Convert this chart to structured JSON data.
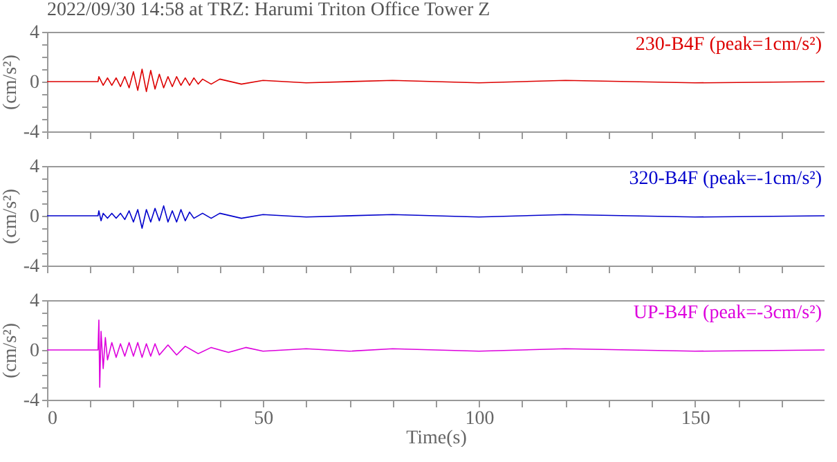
{
  "chart_data": [
    {
      "type": "line",
      "title": "2022/09/30 14:58 at TRZ: Harumi Triton Office Tower Z",
      "ylabel": "(cm/s²)",
      "annotations": [
        "230-B4F (peak=1cm/s²)"
      ],
      "tick_labels": "y",
      "x": [
        0,
        11.8,
        12,
        13,
        14,
        15,
        16,
        17,
        18,
        19,
        20,
        21,
        22,
        23,
        24,
        25,
        26,
        27,
        28,
        29,
        30,
        31,
        32,
        33,
        34,
        35,
        36,
        38,
        40,
        45,
        50,
        60,
        80,
        100,
        120,
        150,
        180
      ],
      "series": [
        {
          "color": "#dd0000",
          "values": [
            0,
            0,
            0.4,
            -0.3,
            0.3,
            -0.3,
            0.3,
            -0.4,
            0.4,
            -0.5,
            0.8,
            -0.7,
            1.0,
            -0.8,
            0.9,
            -0.6,
            0.6,
            -0.5,
            0.4,
            -0.4,
            0.4,
            -0.3,
            0.3,
            -0.3,
            0.3,
            -0.2,
            0.2,
            -0.2,
            0.2,
            -0.2,
            0.1,
            -0.1,
            0.1,
            -0.1,
            0.1,
            -0.1,
            0
          ]
        }
      ],
      "xlim": [
        0,
        180
      ],
      "ylim": [
        -4,
        4
      ],
      "xticks": [
        0,
        {
          "value": 10,
          "label": null
        },
        {
          "value": 20,
          "label": null
        },
        {
          "value": 30,
          "label": null
        },
        {
          "value": 40,
          "label": null
        },
        50,
        {
          "value": 60,
          "label": null
        },
        {
          "value": 70,
          "label": null
        },
        {
          "value": 80,
          "label": null
        },
        {
          "value": 90,
          "label": null
        },
        100,
        {
          "value": 110,
          "label": null
        },
        {
          "value": 120,
          "label": null
        },
        {
          "value": 130,
          "label": null
        },
        {
          "value": 140,
          "label": null
        },
        150,
        {
          "value": 160,
          "label": null
        },
        {
          "value": 170,
          "label": null
        }
      ],
      "yticks": [
        -4,
        {
          "value": -3,
          "label": null
        },
        {
          "value": -2,
          "label": null
        },
        {
          "value": -1,
          "label": null
        },
        0,
        {
          "value": 1,
          "label": null
        },
        {
          "value": 2,
          "label": null
        },
        {
          "value": 3,
          "label": null
        },
        4
      ]
    },
    {
      "type": "line",
      "ylabel": "(cm/s²)",
      "annotations": [
        "320-B4F (peak=-1cm/s²)"
      ],
      "tick_labels": "y",
      "x": [
        0,
        11.8,
        12,
        12.5,
        13,
        14,
        15,
        16,
        17,
        18,
        19,
        20,
        21,
        22,
        23,
        24,
        25,
        26,
        27,
        28,
        29,
        30,
        31,
        32,
        33,
        34,
        36,
        38,
        40,
        45,
        50,
        60,
        80,
        100,
        120,
        150,
        180
      ],
      "series": [
        {
          "color": "#0000cc",
          "values": [
            0,
            0,
            0.4,
            -0.4,
            0.2,
            -0.2,
            0.2,
            -0.2,
            0.2,
            -0.3,
            0.4,
            -0.5,
            0.5,
            -1.0,
            0.5,
            -0.5,
            0.6,
            -0.4,
            0.8,
            -0.5,
            0.4,
            -0.5,
            0.5,
            -0.4,
            0.3,
            -0.2,
            0.2,
            -0.2,
            0.2,
            -0.2,
            0.1,
            -0.1,
            0.1,
            -0.1,
            0.1,
            -0.1,
            0
          ]
        }
      ],
      "xlim": [
        0,
        180
      ],
      "ylim": [
        -4,
        4
      ],
      "xticks": [
        0,
        {
          "value": 10,
          "label": null
        },
        {
          "value": 20,
          "label": null
        },
        {
          "value": 30,
          "label": null
        },
        {
          "value": 40,
          "label": null
        },
        50,
        {
          "value": 60,
          "label": null
        },
        {
          "value": 70,
          "label": null
        },
        {
          "value": 80,
          "label": null
        },
        {
          "value": 90,
          "label": null
        },
        100,
        {
          "value": 110,
          "label": null
        },
        {
          "value": 120,
          "label": null
        },
        {
          "value": 130,
          "label": null
        },
        {
          "value": 140,
          "label": null
        },
        150,
        {
          "value": 160,
          "label": null
        },
        {
          "value": 170,
          "label": null
        }
      ],
      "yticks": [
        -4,
        {
          "value": -3,
          "label": null
        },
        {
          "value": -2,
          "label": null
        },
        {
          "value": -1,
          "label": null
        },
        0,
        {
          "value": 1,
          "label": null
        },
        {
          "value": 2,
          "label": null
        },
        {
          "value": 3,
          "label": null
        },
        4
      ]
    },
    {
      "type": "line",
      "xlabel": "Time(s)",
      "ylabel": "(cm/s²)",
      "annotations": [
        "UP-B4F (peak=-3cm/s²)"
      ],
      "x": [
        0,
        11.8,
        12,
        12.2,
        12.5,
        13,
        13.5,
        14,
        15,
        16,
        17,
        18,
        19,
        20,
        21,
        22,
        23,
        24,
        25,
        26,
        28,
        30,
        32,
        35,
        38,
        42,
        46,
        50,
        60,
        70,
        80,
        100,
        120,
        150,
        180
      ],
      "series": [
        {
          "color": "#dd00dd",
          "values": [
            0,
            0,
            2.4,
            -3.0,
            1.5,
            -1.5,
            1.0,
            -0.8,
            0.6,
            -0.6,
            0.5,
            -0.5,
            0.6,
            -0.5,
            0.6,
            -0.6,
            0.5,
            -0.5,
            0.5,
            -0.4,
            0.4,
            -0.4,
            0.3,
            -0.3,
            0.2,
            -0.2,
            0.2,
            -0.1,
            0.1,
            -0.1,
            0.1,
            -0.1,
            0.1,
            -0.1,
            0
          ]
        }
      ],
      "xlim": [
        0,
        180
      ],
      "ylim": [
        -4,
        4
      ],
      "xticks": [
        0,
        {
          "value": 10,
          "label": null
        },
        {
          "value": 20,
          "label": null
        },
        {
          "value": 30,
          "label": null
        },
        {
          "value": 40,
          "label": null
        },
        50,
        {
          "value": 60,
          "label": null
        },
        {
          "value": 70,
          "label": null
        },
        {
          "value": 80,
          "label": null
        },
        {
          "value": 90,
          "label": null
        },
        100,
        {
          "value": 110,
          "label": null
        },
        {
          "value": 120,
          "label": null
        },
        {
          "value": 130,
          "label": null
        },
        {
          "value": 140,
          "label": null
        },
        150,
        {
          "value": 160,
          "label": null
        },
        {
          "value": 170,
          "label": null
        }
      ],
      "yticks": [
        -4,
        {
          "value": -3,
          "label": null
        },
        {
          "value": -2,
          "label": null
        },
        {
          "value": -1,
          "label": null
        },
        0,
        {
          "value": 1,
          "label": null
        },
        {
          "value": 2,
          "label": null
        },
        {
          "value": 3,
          "label": null
        },
        4
      ]
    }
  ]
}
